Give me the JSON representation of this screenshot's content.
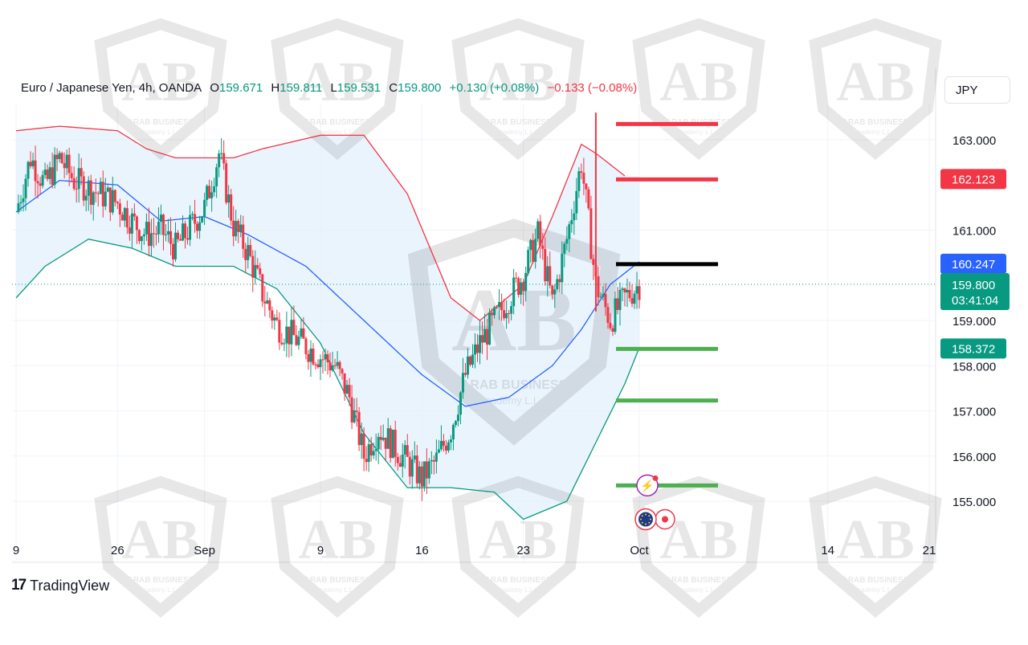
{
  "header": {
    "symbol": "Euro / Japanese Yen, 4h, OANDA",
    "o_label": "O",
    "o_value": "159.671",
    "h_label": "H",
    "h_value": "159.811",
    "l_label": "L",
    "l_value": "159.531",
    "c_label": "C",
    "c_value": "159.800",
    "change": "+0.130 (+0.08%)",
    "change2": "−0.133 (−0.08%)"
  },
  "currency_button": "JPY",
  "branding": {
    "tradingview": "TradingView",
    "watermark_line1": "ARAB BUSINESS",
    "watermark_line2": "Academy L.L.C"
  },
  "colors": {
    "up": "#089981",
    "down": "#f23645",
    "upper_band": "#f23645",
    "lower_band": "#089981",
    "basis": "#2962ff",
    "band_fill": "#e3f0fc",
    "resistance": "#f23645",
    "support": "#4caf50",
    "pivot": "#000000"
  },
  "chart_data": {
    "type": "candlestick",
    "instrument": "EUR/JPY",
    "timeframe": "4h",
    "y_ticks": [
      163.0,
      161.0,
      159.0,
      158.0,
      157.0,
      156.0,
      155.0
    ],
    "y_tick_labels": [
      "163.000",
      "161.000",
      "159.000",
      "158.000",
      "157.000",
      "156.000",
      "155.000"
    ],
    "ylim": [
      154.1,
      164.0
    ],
    "x_tick_labels": [
      {
        "label": "9",
        "date": "2024-08-19"
      },
      {
        "label": "26",
        "date": "2024-08-26"
      },
      {
        "label": "Sep",
        "date": "2024-09-01"
      },
      {
        "label": "9",
        "date": "2024-09-09"
      },
      {
        "label": "16",
        "date": "2024-09-16"
      },
      {
        "label": "23",
        "date": "2024-09-23"
      },
      {
        "label": "Oct",
        "date": "2024-10-01"
      },
      {
        "label": "14",
        "date": "2024-10-14"
      },
      {
        "label": "21",
        "date": "2024-10-21"
      }
    ],
    "price_tags": [
      {
        "label": "162.123",
        "value": 162.123,
        "color": "#f23645"
      },
      {
        "label": "160.247",
        "value": 160.247,
        "color": "#2962ff"
      },
      {
        "label": "159.800",
        "sub": "03:41:04",
        "value": 159.8,
        "color": "#089981"
      },
      {
        "label": "158.372",
        "value": 158.372,
        "color": "#089981"
      }
    ],
    "current_price": 159.8,
    "levels": [
      {
        "value": 163.35,
        "color": "#f23645"
      },
      {
        "value": 162.123,
        "color": "#f23645"
      },
      {
        "value": 160.247,
        "color": "#000000"
      },
      {
        "value": 158.372,
        "color": "#4caf50"
      },
      {
        "value": 157.23,
        "color": "#4caf50"
      },
      {
        "value": 155.35,
        "color": "#4caf50"
      }
    ],
    "close_path": [
      [
        "2024-08-19",
        161.4
      ],
      [
        "2024-08-20",
        162.6
      ],
      [
        "2024-08-21",
        162.0
      ],
      [
        "2024-08-22",
        162.6
      ],
      [
        "2024-08-23",
        162.1
      ],
      [
        "2024-08-26",
        161.6
      ],
      [
        "2024-08-27",
        161.2
      ],
      [
        "2024-08-28",
        160.9
      ],
      [
        "2024-08-29",
        161.0
      ],
      [
        "2024-08-30",
        160.6
      ],
      [
        "2024-09-01",
        161.5
      ],
      [
        "2024-09-02",
        162.7
      ],
      [
        "2024-09-03",
        161.1
      ],
      [
        "2024-09-04",
        160.5
      ],
      [
        "2024-09-05",
        159.6
      ],
      [
        "2024-09-06",
        158.9
      ],
      [
        "2024-09-09",
        158.2
      ],
      [
        "2024-09-10",
        158.0
      ],
      [
        "2024-09-11",
        157.3
      ],
      [
        "2024-09-12",
        156.0
      ],
      [
        "2024-09-13",
        156.6
      ],
      [
        "2024-09-16",
        155.5
      ],
      [
        "2024-09-17",
        155.9
      ],
      [
        "2024-09-18",
        156.6
      ],
      [
        "2024-09-19",
        157.8
      ],
      [
        "2024-09-20",
        158.5
      ],
      [
        "2024-09-23",
        160.0
      ],
      [
        "2024-09-24",
        160.9
      ],
      [
        "2024-09-25",
        159.4
      ],
      [
        "2024-09-26",
        160.8
      ],
      [
        "2024-09-27",
        162.5
      ],
      [
        "2024-09-28",
        159.8
      ],
      [
        "2024-09-29",
        159.0
      ],
      [
        "2024-09-30",
        159.5
      ],
      [
        "2024-10-01",
        159.8
      ]
    ],
    "bollinger": {
      "upper": [
        [
          "2024-08-19",
          163.2
        ],
        [
          "2024-08-22",
          163.3
        ],
        [
          "2024-08-26",
          163.2
        ],
        [
          "2024-08-28",
          162.8
        ],
        [
          "2024-08-30",
          162.6
        ],
        [
          "2024-09-03",
          162.6
        ],
        [
          "2024-09-05",
          162.8
        ],
        [
          "2024-09-09",
          163.1
        ],
        [
          "2024-09-12",
          163.1
        ],
        [
          "2024-09-15",
          161.8
        ],
        [
          "2024-09-18",
          159.5
        ],
        [
          "2024-09-20",
          159.0
        ],
        [
          "2024-09-23",
          159.8
        ],
        [
          "2024-09-25",
          161.3
        ],
        [
          "2024-09-27",
          162.9
        ],
        [
          "2024-09-28",
          162.7
        ],
        [
          "2024-09-30",
          162.2
        ]
      ],
      "basis": [
        [
          "2024-08-19",
          161.4
        ],
        [
          "2024-08-22",
          162.1
        ],
        [
          "2024-08-26",
          162.0
        ],
        [
          "2024-08-29",
          161.2
        ],
        [
          "2024-09-01",
          161.3
        ],
        [
          "2024-09-04",
          160.9
        ],
        [
          "2024-09-08",
          160.2
        ],
        [
          "2024-09-12",
          159.0
        ],
        [
          "2024-09-16",
          157.8
        ],
        [
          "2024-09-19",
          157.1
        ],
        [
          "2024-09-22",
          157.3
        ],
        [
          "2024-09-25",
          158.0
        ],
        [
          "2024-09-27",
          158.8
        ],
        [
          "2024-09-29",
          159.8
        ],
        [
          "2024-10-01",
          160.3
        ]
      ],
      "lower": [
        [
          "2024-08-19",
          159.5
        ],
        [
          "2024-08-21",
          160.2
        ],
        [
          "2024-08-24",
          160.8
        ],
        [
          "2024-08-27",
          160.6
        ],
        [
          "2024-08-30",
          160.2
        ],
        [
          "2024-09-03",
          160.2
        ],
        [
          "2024-09-06",
          159.7
        ],
        [
          "2024-09-09",
          158.5
        ],
        [
          "2024-09-12",
          156.5
        ],
        [
          "2024-09-15",
          155.3
        ],
        [
          "2024-09-18",
          155.3
        ],
        [
          "2024-09-21",
          155.2
        ],
        [
          "2024-09-23",
          154.6
        ],
        [
          "2024-09-26",
          155.0
        ],
        [
          "2024-09-28",
          156.3
        ],
        [
          "2024-09-30",
          157.6
        ],
        [
          "2024-10-01",
          158.4
        ]
      ]
    }
  }
}
